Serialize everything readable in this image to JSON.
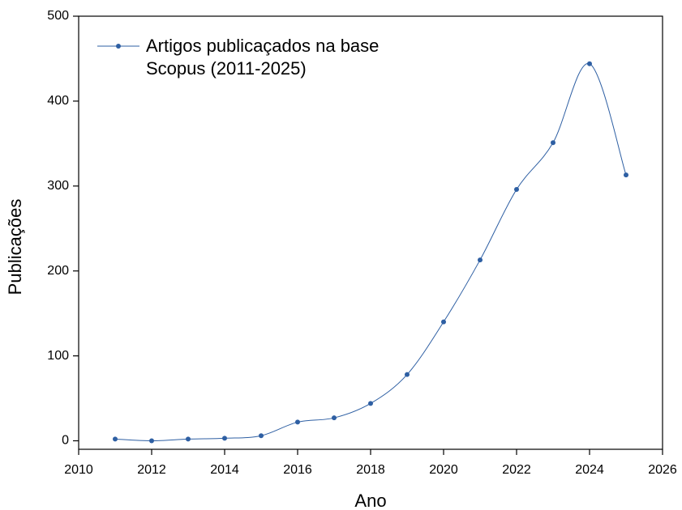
{
  "chart_data": {
    "type": "line",
    "xlabel": "Ano",
    "ylabel": "Publicações",
    "x": [
      2011,
      2012,
      2013,
      2014,
      2015,
      2016,
      2017,
      2018,
      2019,
      2020,
      2021,
      2022,
      2023,
      2024,
      2025
    ],
    "series": [
      {
        "name": "Artigos publicaçados na base Scopus (2011-2025)",
        "color": "#2e5fa3",
        "values": [
          2,
          0,
          2,
          3,
          6,
          22,
          27,
          44,
          78,
          140,
          213,
          296,
          351,
          444,
          313
        ]
      }
    ],
    "xlim": [
      2010,
      2026
    ],
    "xticks": [
      2010,
      2012,
      2014,
      2016,
      2018,
      2020,
      2022,
      2024,
      2026
    ],
    "ylim": [
      -10,
      500
    ],
    "yticks": [
      0,
      100,
      200,
      300,
      400,
      500
    ],
    "smooth": true,
    "grid": false,
    "legend": "upper left"
  }
}
